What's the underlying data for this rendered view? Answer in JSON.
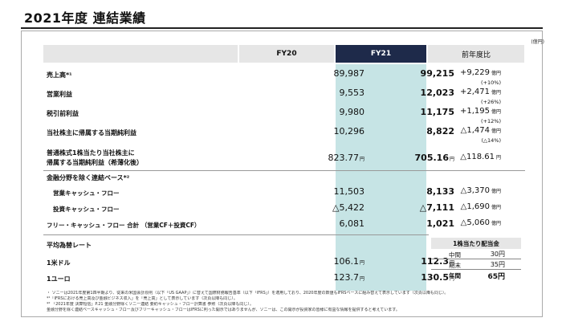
{
  "title": "2021年度 連結業績",
  "unit": "(億円)",
  "headers": {
    "fy20": "FY20",
    "fy21": "FY21",
    "yoy": "前年度比"
  },
  "rows": [
    {
      "label": "売上高*¹",
      "fy20": "89,987",
      "fy21": "99,215",
      "yoy": "+9,229",
      "yoy_unit": "億円",
      "sub": "(+10%)"
    },
    {
      "label": "営業利益",
      "fy20": "9,553",
      "fy21": "12,023",
      "yoy": "+2,471",
      "yoy_unit": "億円",
      "sub": "(+26%)"
    },
    {
      "label": "税引前利益",
      "fy20": "9,980",
      "fy21": "11,175",
      "yoy": "+1,195",
      "yoy_unit": "億円",
      "sub": "(+12%)"
    },
    {
      "label": "当社株主に帰属する当期純利益",
      "fy20": "10,296",
      "fy21": "8,822",
      "yoy": "△1,474",
      "yoy_unit": "億円",
      "sub": "(△14%)"
    },
    {
      "label_line1": "普通株式1株当たり当社株主に",
      "label_line2": "帰属する当期純利益（希薄化後）",
      "fy20": "823.77",
      "fy20_unit": "円",
      "fy21": "705.16",
      "fy21_unit": "円",
      "yoy": "△118.61",
      "yoy_unit": "円"
    }
  ],
  "cash_section": {
    "title": "金融分野を除く連結ベース*²",
    "rows": [
      {
        "label": "営業キャッシュ・フロー",
        "fy20": "11,503",
        "fy21": "8,133",
        "yoy": "△3,370",
        "yoy_unit": "億円"
      },
      {
        "label": "投資キャッシュ・フロー",
        "fy20": "△5,422",
        "fy21": "△7,111",
        "yoy": "△1,690",
        "yoy_unit": "億円"
      },
      {
        "label": "フリー・キャッシュ・フロー 合計 （営業CF＋投資CF）",
        "fy20": "6,081",
        "fy21": "1,021",
        "yoy": "△5,060",
        "yoy_unit": "億円"
      }
    ]
  },
  "fx_section": {
    "title": "平均為替レート",
    "rows": [
      {
        "label": "1米ドル",
        "fy20": "106.1",
        "fy21": "112.3",
        "unit": "円"
      },
      {
        "label": "1ユーロ",
        "fy20": "123.7",
        "fy21": "130.5",
        "unit": "円"
      }
    ]
  },
  "dividend": {
    "title": "1株当たり配当金",
    "rows": [
      {
        "key": "中間",
        "value": "30円"
      },
      {
        "key": "期末",
        "value": "35円"
      },
      {
        "key": "年間",
        "value": "65円"
      }
    ]
  },
  "notes": [
    "・ ソニーは2021年度第1四半期より、従来の米国会計原則（以下「US GAAP」）に替えて国際財務報告基準（以下「IFRS」）を適用しており、2020年度の数値もIFRSベースに組み替えて表示しています（次頁以降も同じ）。",
    "*¹「IFRSにおける売上高及び金融ビジネス収入」を「売上高」として表示しています（次頁以降も同じ）。",
    "*² 「2021年度 決算短信」P.21 金融分野除くソニー連結 要約キャッシュ・フロー計算書 参照（次頁以降も同じ）。",
    "金融分野を除く連結ベースキャッシュ・フロー及びフリーキャッシュ・フローはIFRSに則った開示ではありませんが、ソニーは、この開示が投資家の皆様に有益な情報を提供すると考えています。"
  ]
}
